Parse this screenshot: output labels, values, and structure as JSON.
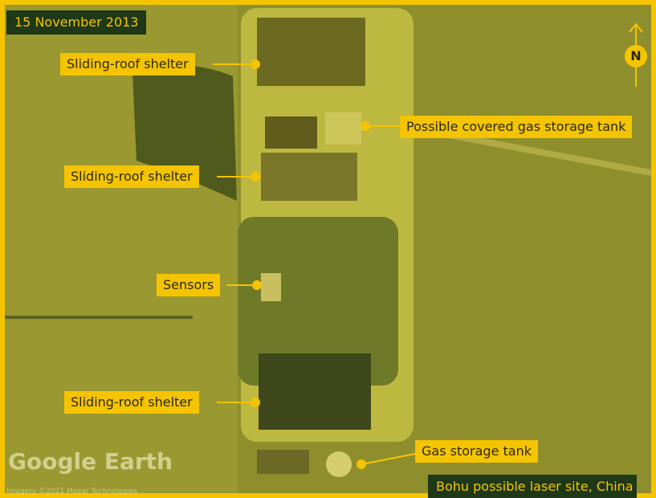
{
  "date": "15 November 2013",
  "labels": [
    "Sliding-roof shelter",
    "Possible covered gas storage tank",
    "Sliding-roof shelter",
    "Sensors",
    "Sliding-roof shelter",
    "Gas storage tank"
  ],
  "caption": "Bohu possible laser site, China",
  "compass": "N",
  "watermark": "Google Earth",
  "credit": "Imagery ©2021 Maxar Technologies"
}
